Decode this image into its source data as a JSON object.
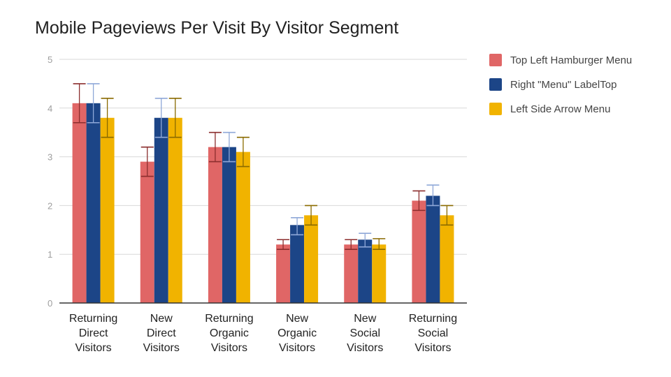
{
  "chart_data": {
    "type": "bar",
    "title": "Mobile Pageviews Per Visit By Visitor Segment",
    "xlabel": "",
    "ylabel": "",
    "ylim": [
      0,
      5
    ],
    "yticks": [
      "0",
      "1",
      "2",
      "3",
      "4",
      "5"
    ],
    "grid": true,
    "legend_position": "right",
    "categories": [
      [
        "Returning",
        "Direct",
        "Visitors"
      ],
      [
        "New",
        "Direct",
        "Visitors"
      ],
      [
        "Returning",
        "Organic",
        "Visitors"
      ],
      [
        "New",
        "Organic",
        "Visitors"
      ],
      [
        "New",
        "Social",
        "Visitors"
      ],
      [
        "Returning",
        "Social",
        "Visitors"
      ]
    ],
    "series": [
      {
        "name": "Top Left Hamburger Menu",
        "color": "#e06666",
        "error_color": "#8b2e2e",
        "values": [
          4.1,
          2.9,
          3.2,
          1.2,
          1.2,
          2.1
        ],
        "error_low": [
          3.7,
          2.6,
          2.9,
          1.1,
          1.1,
          1.9
        ],
        "error_high": [
          4.5,
          3.2,
          3.5,
          1.3,
          1.3,
          2.3
        ]
      },
      {
        "name": "Right \"Menu\" LabelTop",
        "color": "#1c4587",
        "error_color": "#8fa8d8",
        "values": [
          4.1,
          3.8,
          3.2,
          1.6,
          1.3,
          2.2
        ],
        "error_low": [
          3.7,
          3.4,
          2.9,
          1.4,
          1.15,
          2.0
        ],
        "error_high": [
          4.5,
          4.2,
          3.5,
          1.75,
          1.43,
          2.42
        ]
      },
      {
        "name": "Left Side Arrow Menu",
        "color": "#f1b300",
        "error_color": "#8a6a00",
        "values": [
          3.8,
          3.8,
          3.1,
          1.8,
          1.2,
          1.8
        ],
        "error_low": [
          3.4,
          3.4,
          2.8,
          1.6,
          1.1,
          1.6
        ],
        "error_high": [
          4.2,
          4.2,
          3.4,
          2.0,
          1.32,
          2.0
        ]
      }
    ]
  }
}
